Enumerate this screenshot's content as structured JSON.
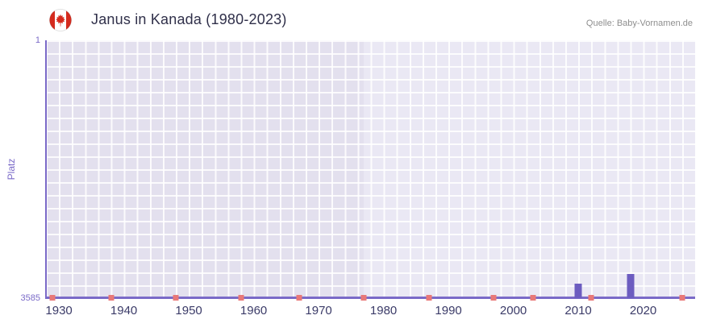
{
  "header": {
    "title": "Janus in Kanada (1980-2023)",
    "source": "Quelle: Baby-Vornamen.de",
    "flag_icon": "canada-flag-icon"
  },
  "chart_data": {
    "type": "bar",
    "title": "Janus in Kanada (1980-2023)",
    "xlabel": "",
    "ylabel": "Platz",
    "x_range": [
      1928,
      2028
    ],
    "y_range": [
      1,
      3585
    ],
    "y_axis": {
      "top_label": "1",
      "bottom_label": "3585",
      "min": 1,
      "max": 3585,
      "inverted": true
    },
    "x_axis": {
      "ticks": [
        1930,
        1940,
        1950,
        1960,
        1970,
        1980,
        1990,
        2000,
        2010,
        2020
      ]
    },
    "series": [
      {
        "name": "Platz",
        "points": [
          {
            "year": 2010,
            "value": 3380
          },
          {
            "year": 2018,
            "value": 3250
          }
        ]
      }
    ],
    "baseline_value": 3585,
    "unranked_marker_years": [
      1929,
      1938,
      1948,
      1958,
      1967,
      1977,
      1987,
      1997,
      2003,
      2012,
      2026
    ],
    "bands": [
      {
        "from": 1977,
        "to": 2028,
        "color": "#eae8f4"
      },
      {
        "from": 2021,
        "to": 2025,
        "color": "#f1eff9"
      }
    ],
    "grid": true,
    "legend": false,
    "colors": {
      "bar": "#6c5cc0",
      "marker": "#e87878",
      "axis": "#7a6ac8",
      "plot_background": "#e3e0ee",
      "grid_line": "#ffffff",
      "tick_label": "#3b3b68",
      "title": "#30304a",
      "source": "#8e8e8e"
    }
  }
}
